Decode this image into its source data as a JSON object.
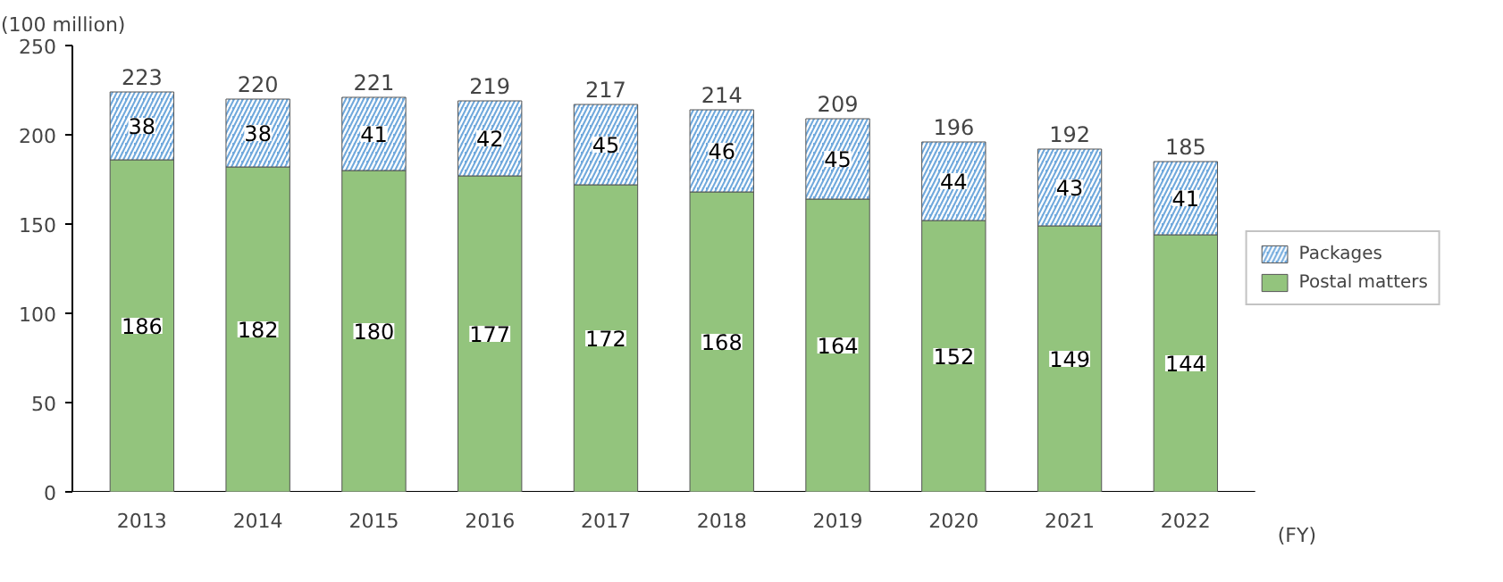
{
  "chart_data": {
    "type": "bar",
    "stacked": true,
    "ylabel": "(100 million)",
    "xlabel": "(FY)",
    "categories": [
      "2013",
      "2014",
      "2015",
      "2016",
      "2017",
      "2018",
      "2019",
      "2020",
      "2021",
      "2022"
    ],
    "series": [
      {
        "name": "Postal matters",
        "color": "#93c47d",
        "values": [
          186,
          182,
          180,
          177,
          172,
          168,
          164,
          152,
          149,
          144
        ]
      },
      {
        "name": "Packages",
        "color": "#6fa8dc",
        "values": [
          38,
          38,
          41,
          42,
          45,
          46,
          45,
          44,
          43,
          41
        ]
      }
    ],
    "totals": [
      "223",
      "220",
      "221",
      "219",
      "217",
      "214",
      "209",
      "196",
      "192",
      "185"
    ],
    "data_labels": true,
    "ylim": [
      0,
      250
    ],
    "yticks": [
      0,
      50,
      100,
      150,
      200,
      250
    ],
    "grid": false,
    "legend": "right"
  }
}
